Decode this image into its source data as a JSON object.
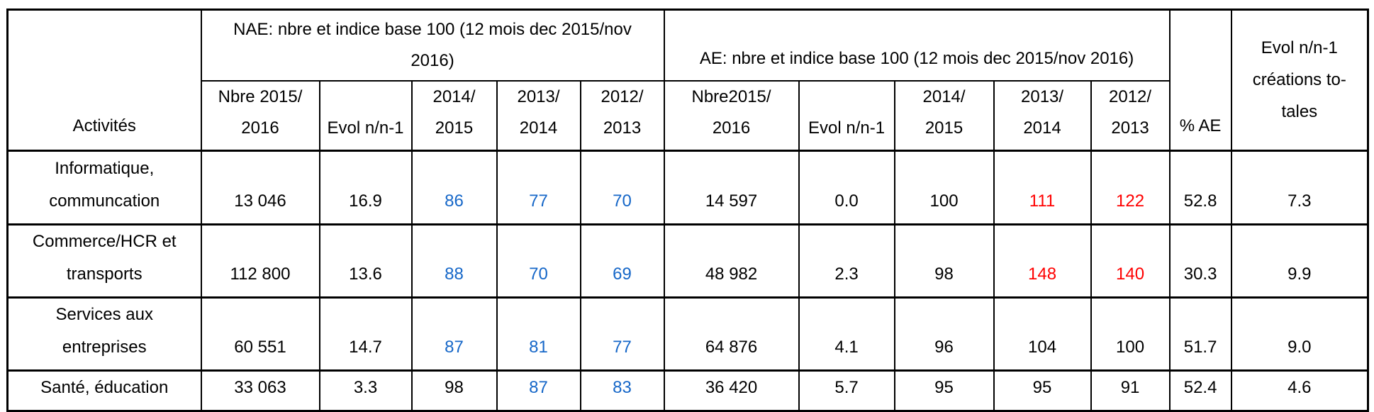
{
  "colors": {
    "index_blue": "#1667C8",
    "index_red": "#FF0000",
    "grid": "#000000",
    "background": "#FFFFFF"
  },
  "chart_data": {
    "type": "table",
    "corner_header": "Activités",
    "groups": [
      {
        "label": "NAE: nbre et indice base 100 (12 mois dec 2015/nov\n2016)",
        "span": 5
      },
      {
        "label": "AE: nbre et indice base 100 (12 mois dec 2015/nov 2016)",
        "span": 5
      }
    ],
    "sub_columns": [
      "Nbre 2015/\n2016",
      "Evol n/n-1",
      "2014/\n2015",
      "2013/\n2014",
      "2012/\n2013",
      "Nbre2015/\n2016",
      "Evol n/n-1",
      "2014/\n2015",
      "2013/\n2014",
      "2012/\n2013"
    ],
    "tail_headers": [
      "% AE",
      "Evol n/n-1\ncréations to-\ntales"
    ],
    "rows": [
      {
        "activity": "Informatique,\ncommuncation",
        "values": [
          {
            "v": "13 046"
          },
          {
            "v": "16.9"
          },
          {
            "v": "86",
            "c": "blue"
          },
          {
            "v": "77",
            "c": "blue"
          },
          {
            "v": "70",
            "c": "blue"
          },
          {
            "v": "14 597"
          },
          {
            "v": "0.0"
          },
          {
            "v": "100"
          },
          {
            "v": "111",
            "c": "red"
          },
          {
            "v": "122",
            "c": "red"
          },
          {
            "v": "52.8"
          },
          {
            "v": "7.3"
          }
        ]
      },
      {
        "activity": "Commerce/HCR et\ntransports",
        "values": [
          {
            "v": "112 800"
          },
          {
            "v": "13.6"
          },
          {
            "v": "88",
            "c": "blue"
          },
          {
            "v": "70",
            "c": "blue"
          },
          {
            "v": "69",
            "c": "blue"
          },
          {
            "v": "48 982"
          },
          {
            "v": "2.3"
          },
          {
            "v": "98"
          },
          {
            "v": "148",
            "c": "red"
          },
          {
            "v": "140",
            "c": "red"
          },
          {
            "v": "30.3"
          },
          {
            "v": "9.9"
          }
        ]
      },
      {
        "activity": "Services aux\nentreprises",
        "values": [
          {
            "v": "60 551"
          },
          {
            "v": "14.7"
          },
          {
            "v": "87",
            "c": "blue"
          },
          {
            "v": "81",
            "c": "blue"
          },
          {
            "v": "77",
            "c": "blue"
          },
          {
            "v": "64 876"
          },
          {
            "v": "4.1"
          },
          {
            "v": "96"
          },
          {
            "v": "104"
          },
          {
            "v": "100"
          },
          {
            "v": "51.7"
          },
          {
            "v": "9.0"
          }
        ]
      },
      {
        "activity": "Santé, éducation",
        "values": [
          {
            "v": "33 063"
          },
          {
            "v": "3.3"
          },
          {
            "v": "98"
          },
          {
            "v": "87",
            "c": "blue"
          },
          {
            "v": "83",
            "c": "blue"
          },
          {
            "v": "36 420"
          },
          {
            "v": "5.7"
          },
          {
            "v": "95"
          },
          {
            "v": "95"
          },
          {
            "v": "91"
          },
          {
            "v": "52.4"
          },
          {
            "v": "4.6"
          }
        ]
      }
    ]
  }
}
